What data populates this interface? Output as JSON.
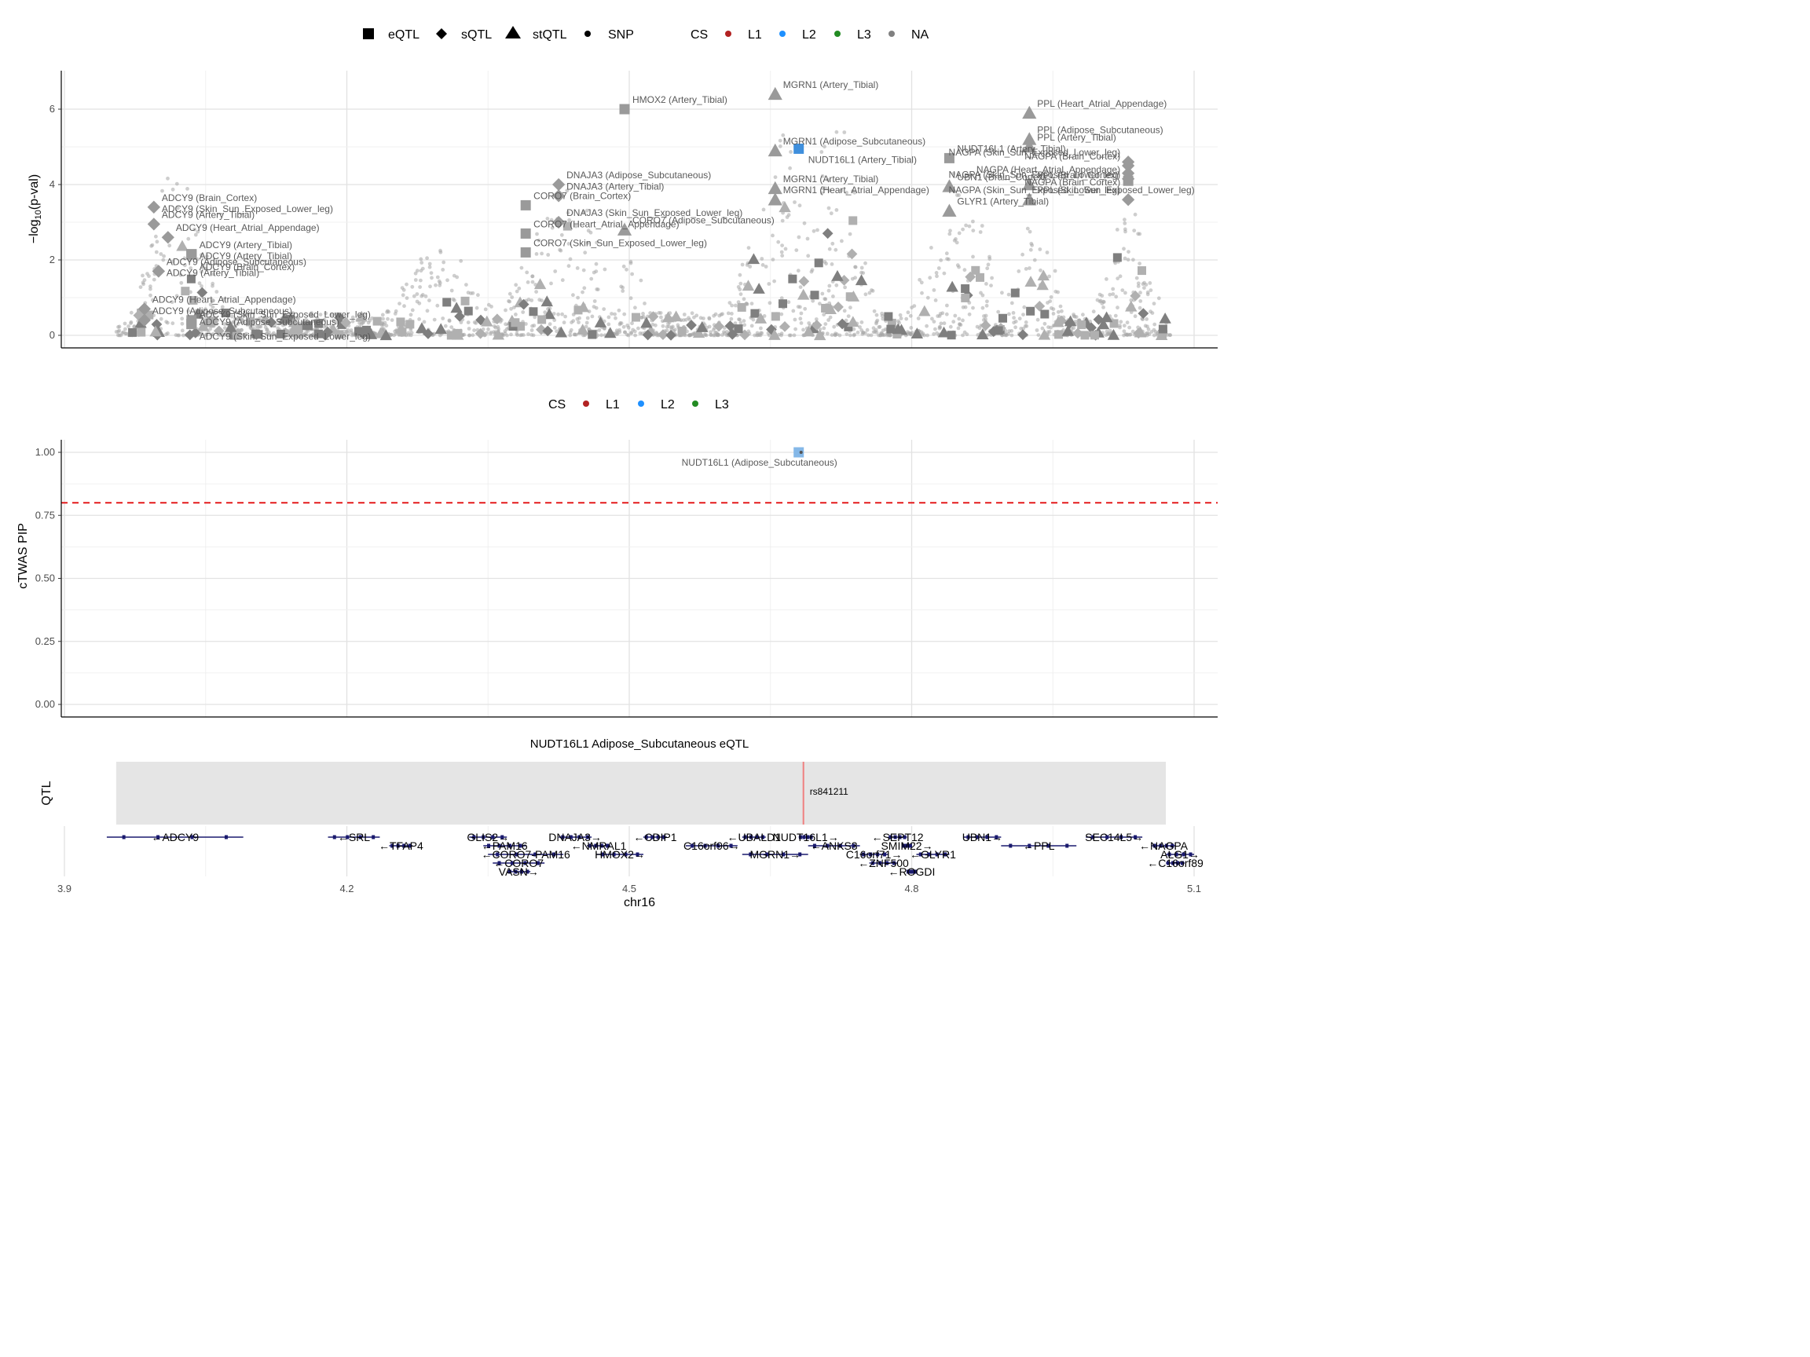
{
  "chart_data": [
    {
      "type": "scatter",
      "panel": "top",
      "ylabel": "−log10(p-val)",
      "ylim": [
        0,
        7
      ],
      "xlim": [
        3.9,
        5.1
      ],
      "y_ticks": [
        "0",
        "2",
        "4",
        "6"
      ],
      "grid": true,
      "legend_shape": {
        "position": "top",
        "entries": [
          "eQTL",
          "sQTL",
          "stQTL",
          "SNP"
        ]
      },
      "legend_cs": {
        "position": "top",
        "title": "CS",
        "entries": [
          "L1",
          "L2",
          "L3",
          "NA"
        ],
        "colors": [
          "#b22222",
          "#1e90ff",
          "#228b22",
          "#808080"
        ]
      },
      "highlight": {
        "x": 4.68,
        "y": 4.95,
        "shape": "eQTL",
        "cs": "L2",
        "label": "NUDT16L1 (Artery_Tibial)"
      },
      "annotated_points": [
        {
          "x": 4.495,
          "y": 6.0,
          "shape": "eQTL",
          "label": "HMOX2 (Artery_Tibial)"
        },
        {
          "x": 4.655,
          "y": 6.4,
          "shape": "stQTL",
          "label": "MGRN1 (Artery_Tibial)"
        },
        {
          "x": 4.655,
          "y": 4.9,
          "shape": "stQTL",
          "label": "MGRN1 (Adipose_Subcutaneous)"
        },
        {
          "x": 4.655,
          "y": 3.9,
          "shape": "stQTL",
          "label": "MGRN1 (Artery_Tibial)"
        },
        {
          "x": 4.655,
          "y": 3.6,
          "shape": "stQTL",
          "label": "MGRN1 (Heart_Atrial_Appendage)"
        },
        {
          "x": 4.425,
          "y": 4.0,
          "shape": "sQTL",
          "label": "DNAJA3 (Adipose_Subcutaneous)"
        },
        {
          "x": 4.425,
          "y": 3.7,
          "shape": "sQTL",
          "label": "DNAJA3 (Artery_Tibial)"
        },
        {
          "x": 4.425,
          "y": 3.0,
          "shape": "sQTL",
          "label": "DNAJA3 (Skin_Sun_Exposed_Lower_leg)"
        },
        {
          "x": 4.39,
          "y": 3.45,
          "shape": "eQTL",
          "label": "CORO7 (Brain_Cortex)"
        },
        {
          "x": 4.39,
          "y": 2.7,
          "shape": "eQTL",
          "label": "CORO7 (Heart_Atrial_Appendage)"
        },
        {
          "x": 4.39,
          "y": 2.2,
          "shape": "eQTL",
          "label": "CORO7 (Skin_Sun_Exposed_Lower_leg)"
        },
        {
          "x": 4.495,
          "y": 2.8,
          "shape": "stQTL",
          "label": "CORO7 (Adipose_Subcutaneous)"
        },
        {
          "x": 4.84,
          "y": 4.7,
          "shape": "eQTL",
          "label": "NUDT16L1 (Artery_Tibial)"
        },
        {
          "x": 4.84,
          "y": 3.95,
          "shape": "stQTL",
          "label": "UBN1 (Brain_Cortex)"
        },
        {
          "x": 4.84,
          "y": 3.3,
          "shape": "stQTL",
          "label": "GLYR1 (Artery_Tibial)"
        },
        {
          "x": 4.925,
          "y": 5.9,
          "shape": "stQTL",
          "label": "PPL (Heart_Atrial_Appendage)"
        },
        {
          "x": 4.925,
          "y": 5.2,
          "shape": "stQTL",
          "label": "PPL (Adipose_Subcutaneous)"
        },
        {
          "x": 4.925,
          "y": 5.0,
          "shape": "stQTL",
          "label": "PPL (Artery_Tibial)"
        },
        {
          "x": 4.925,
          "y": 4.0,
          "shape": "stQTL",
          "label": "PPL (Brain_Cortex)"
        },
        {
          "x": 4.925,
          "y": 3.6,
          "shape": "stQTL",
          "label": "PPL (Skin_Sun_Exposed_Lower_leg)"
        },
        {
          "x": 5.03,
          "y": 4.6,
          "shape": "sQTL",
          "label": "NAGPA (Skin_Sun_Exposed_Lower_leg)"
        },
        {
          "x": 5.03,
          "y": 4.5,
          "shape": "sQTL",
          "label": "NAGPA (Brain_Cortex)"
        },
        {
          "x": 5.03,
          "y": 4.3,
          "shape": "sQTL",
          "label": "NAGPA (Skin_Sun_Exposed_Lower_leg)"
        },
        {
          "x": 5.03,
          "y": 4.15,
          "shape": "sQTL",
          "label": "NAGPA (Heart_Atrial_Appendage)"
        },
        {
          "x": 5.03,
          "y": 4.1,
          "shape": "eQTL",
          "label": "NAGPA (Brain_Cortex)"
        },
        {
          "x": 5.03,
          "y": 3.6,
          "shape": "sQTL",
          "label": "NAGPA (Skin_Sun_Exposed_Lower_leg)"
        },
        {
          "x": 3.995,
          "y": 3.4,
          "shape": "sQTL",
          "label": "ADCY9 (Brain_Cortex)"
        },
        {
          "x": 3.995,
          "y": 3.4,
          "shape": "sQTL",
          "label": "ADCY9 (Skin_Sun_Exposed_Lower_leg)"
        },
        {
          "x": 3.995,
          "y": 2.95,
          "shape": "sQTL",
          "label": "ADCY9 (Artery_Tibial)"
        },
        {
          "x": 4.01,
          "y": 2.6,
          "shape": "sQTL",
          "label": "ADCY9 (Heart_Atrial_Appendage)"
        },
        {
          "x": 4.035,
          "y": 2.15,
          "shape": "eQTL",
          "label": "ADCY9 (Artery_Tibial)"
        },
        {
          "x": 4.035,
          "y": 2.15,
          "shape": "eQTL",
          "label": "ADCY9 (Artery_Tibial)"
        },
        {
          "x": 4.035,
          "y": 2.15,
          "shape": "eQTL",
          "label": "ADCY9 (Brain_Cortex)"
        },
        {
          "x": 4.0,
          "y": 1.7,
          "shape": "sQTL",
          "label": "ADCY9 (Adipose_Subcutaneous)"
        },
        {
          "x": 4.0,
          "y": 1.7,
          "shape": "sQTL",
          "label": "ADCY9 (Artery_Tibial)"
        },
        {
          "x": 3.985,
          "y": 0.7,
          "shape": "sQTL",
          "label": "ADCY9 (Heart_Atrial_Appendage)"
        },
        {
          "x": 4.035,
          "y": 0.3,
          "shape": "eQTL",
          "label": "ADCY9 (Skin_Sun_Exposed_Lower_leg)"
        },
        {
          "x": 3.985,
          "y": 0.4,
          "shape": "sQTL",
          "label": "ADCY9 (Adipose_Subcutaneous)"
        },
        {
          "x": 4.035,
          "y": 0.4,
          "shape": "eQTL",
          "label": "ADCY9 (Adipose_Subcutaneous)"
        },
        {
          "x": 4.035,
          "y": 0.3,
          "shape": "eQTL",
          "label": "ADCY9 (Skin_Sun_Exposed_Lower_leg)"
        }
      ]
    },
    {
      "type": "scatter",
      "panel": "middle",
      "ylabel": "cTWAS PIP",
      "ylim": [
        0,
        1
      ],
      "xlim": [
        3.9,
        5.1
      ],
      "y_ticks": [
        "0.00",
        "0.25",
        "0.50",
        "0.75",
        "1.00"
      ],
      "threshold": 0.8,
      "grid": true,
      "legend_cs": {
        "position": "top",
        "title": "CS",
        "entries": [
          "L1",
          "L2",
          "L3"
        ],
        "colors": [
          "#b22222",
          "#1e90ff",
          "#228b22"
        ]
      },
      "points": [
        {
          "x": 4.68,
          "y": 1.0,
          "shape": "eQTL",
          "cs": "L2",
          "label": "NUDT16L1 (Adipose_Subcutaneous)"
        }
      ]
    },
    {
      "type": "track",
      "panel": "bottom",
      "title": "NUDT16L1 Adipose_Subcutaneous eQTL",
      "ylabel": "QTL",
      "xlabel": "chr16",
      "xlim": [
        3.9,
        5.1
      ],
      "x_ticks": [
        "3.9",
        "4.2",
        "4.5",
        "4.8",
        "5.1"
      ],
      "qtl_region": [
        3.955,
        5.07
      ],
      "snp": {
        "x": 4.685,
        "label": "rs841211"
      },
      "genes": [
        {
          "label": "←ADCY9",
          "start": 3.945,
          "end": 4.09,
          "row": 0
        },
        {
          "label": "←SRL",
          "start": 4.18,
          "end": 4.235,
          "row": 0
        },
        {
          "label": "←TFAP4",
          "start": 4.245,
          "end": 4.27,
          "row": 1
        },
        {
          "label": "GLIS2→",
          "start": 4.33,
          "end": 4.37,
          "row": 0
        },
        {
          "label": "←PAM16",
          "start": 4.345,
          "end": 4.39,
          "row": 1
        },
        {
          "label": "←CORO7-PAM16",
          "start": 4.35,
          "end": 4.43,
          "row": 2
        },
        {
          "label": "←CORO7",
          "start": 4.355,
          "end": 4.41,
          "row": 3
        },
        {
          "label": "VASN→",
          "start": 4.37,
          "end": 4.395,
          "row": 4
        },
        {
          "label": "DNAJA3→",
          "start": 4.425,
          "end": 4.46,
          "row": 0
        },
        {
          "label": "←NMRAL1",
          "start": 4.455,
          "end": 4.48,
          "row": 1
        },
        {
          "label": "HMOX2→",
          "start": 4.465,
          "end": 4.515,
          "row": 2
        },
        {
          "label": "←CDIP1",
          "start": 4.515,
          "end": 4.54,
          "row": 0
        },
        {
          "label": "C16orf96→",
          "start": 4.56,
          "end": 4.615,
          "row": 1
        },
        {
          "label": "←UBALD1",
          "start": 4.62,
          "end": 4.645,
          "row": 0
        },
        {
          "label": "MGRN1→",
          "start": 4.62,
          "end": 4.69,
          "row": 2
        },
        {
          "label": "NUDT16L1→",
          "start": 4.68,
          "end": 4.695,
          "row": 0
        },
        {
          "label": "←ANKS3",
          "start": 4.69,
          "end": 4.745,
          "row": 1
        },
        {
          "label": "C16orf71→",
          "start": 4.745,
          "end": 4.775,
          "row": 2
        },
        {
          "label": "←ZNF500",
          "start": 4.755,
          "end": 4.785,
          "row": 3
        },
        {
          "label": "←SEPT12",
          "start": 4.775,
          "end": 4.795,
          "row": 0
        },
        {
          "label": "SMIM22→",
          "start": 4.79,
          "end": 4.8,
          "row": 1
        },
        {
          "label": "←ROGDI",
          "start": 4.795,
          "end": 4.805,
          "row": 4
        },
        {
          "label": "←GLYR1",
          "start": 4.805,
          "end": 4.84,
          "row": 2
        },
        {
          "label": "UBN1→",
          "start": 4.855,
          "end": 4.895,
          "row": 0
        },
        {
          "label": "←PPL",
          "start": 4.895,
          "end": 4.975,
          "row": 1
        },
        {
          "label": "SEC14L5→",
          "start": 4.985,
          "end": 5.045,
          "row": 0
        },
        {
          "label": "←NAGPA",
          "start": 5.055,
          "end": 5.08,
          "row": 1
        },
        {
          "label": "ALG1→",
          "start": 5.07,
          "end": 5.1,
          "row": 2
        },
        {
          "label": "←C16orf89",
          "start": 5.07,
          "end": 5.09,
          "row": 3
        }
      ]
    }
  ]
}
